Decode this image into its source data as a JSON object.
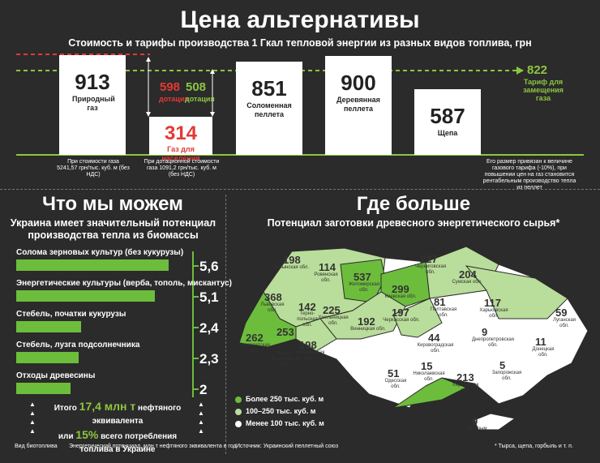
{
  "header": {
    "title": "Цена альтернативы",
    "subtitle": "Стоимость и тарифы производства 1 Гкал тепловой энергии из разных видов топлива, грн"
  },
  "top_chart": {
    "bars": [
      {
        "value": "913",
        "label": "Природный газ",
        "note": "При стоимости газа 5241,57 грн/тыс. куб. м (без НДС)"
      },
      {
        "value": "314",
        "label": "Газ для населения",
        "note": "При дотационной стоимости газа 1091,2 грн/тыс. куб. м (без НДС)"
      },
      {
        "value": "851",
        "label": "Соломенная пеллета",
        "note": ""
      },
      {
        "value": "900",
        "label": "Деревянная пеллета",
        "note": ""
      },
      {
        "value": "587",
        "label": "Щепа",
        "note": ""
      }
    ],
    "subsidy_red": {
      "value": "598",
      "label": "дотация"
    },
    "subsidy_green": {
      "value": "508",
      "label": "дотация"
    },
    "tariff": {
      "value": "822",
      "label": "Тариф для замещения газа",
      "note": "Его размер привязан к величине газового тарифа (-10%), при повышении цен на газ становится рентабельным производство тепла из пеллет"
    },
    "colors": {
      "red": "#e53935",
      "green": "#8cc63f"
    }
  },
  "left": {
    "title": "Что мы можем",
    "subtitle": "Украина имеет значительный потенциал производства тепла из биомассы",
    "items": [
      {
        "label": "Солома зерновых культур (без кукурузы)",
        "value": "5,6"
      },
      {
        "label": "Энергетические культуры (верба, тополь, мискантус)",
        "value": "5,1"
      },
      {
        "label": "Стебель, початки кукурузы",
        "value": "2,4"
      },
      {
        "label": "Стебель, лузга подсолнечника",
        "value": "2,3"
      },
      {
        "label": "Отходы древесины",
        "value": "2"
      }
    ],
    "summary_line1_pre": "Итого",
    "summary_line1_big": "17,4 млн т",
    "summary_line1_post": "нефтяного эквивалента",
    "summary_line2_pre": "или",
    "summary_line2_big": "15%",
    "summary_line2_post": "всего потребления",
    "summary_line3": "топлива в Украине",
    "footer_left": "Вид биотоплива",
    "footer_right": "Энергетический потенциал, млн т нефтяного эквивалента в год"
  },
  "right": {
    "title": "Где больше",
    "subtitle": "Потенциал заготовки древесного энергетического сырья*",
    "legend": [
      {
        "label": "Более 250 тыс. куб. м",
        "color": "#6cbd3c"
      },
      {
        "label": "100–250 тыс. куб. м",
        "color": "#b9dd9a"
      },
      {
        "label": "Менее 100 тыс. куб. м",
        "color": "#ffffff"
      }
    ],
    "regions": [
      {
        "num": "198",
        "name": "Волынская обл."
      },
      {
        "num": "114",
        "name": "Ровенская обл."
      },
      {
        "num": "537",
        "name": "Житомирская обл."
      },
      {
        "num": "299",
        "name": "Киевская обл."
      },
      {
        "num": "227",
        "name": "Черниговская обл."
      },
      {
        "num": "204",
        "name": "Сумская обл."
      },
      {
        "num": "368",
        "name": "Львовская обл."
      },
      {
        "num": "142",
        "name": "Терно-польская обл."
      },
      {
        "num": "225",
        "name": "Хмельницкая обл."
      },
      {
        "num": "192",
        "name": "Винницкая обл."
      },
      {
        "num": "197",
        "name": "Черкасская обл."
      },
      {
        "num": "81",
        "name": "Полтавская обл."
      },
      {
        "num": "117",
        "name": "Харьковская обл."
      },
      {
        "num": "59",
        "name": "Луганская обл."
      },
      {
        "num": "262",
        "name": "Закарпатская обл."
      },
      {
        "num": "253",
        "name": "Ивано-Франковская обл."
      },
      {
        "num": "198",
        "name": "Черновицкая обл."
      },
      {
        "num": "44",
        "name": "Кировоградская обл."
      },
      {
        "num": "9",
        "name": "Днепропетровская обл."
      },
      {
        "num": "11",
        "name": "Донецкая обл."
      },
      {
        "num": "15",
        "name": "Николаевская обл."
      },
      {
        "num": "5",
        "name": "Запорожская обл."
      },
      {
        "num": "51",
        "name": "Одесская обл."
      },
      {
        "num": "213",
        "name": "Херсонская обл."
      },
      {
        "num": "9",
        "name": "АР Крым"
      }
    ],
    "source": "Источник: Украинский пеллетный союз",
    "footnote": "* Тырса, щепа, горбыль и т. п."
  }
}
